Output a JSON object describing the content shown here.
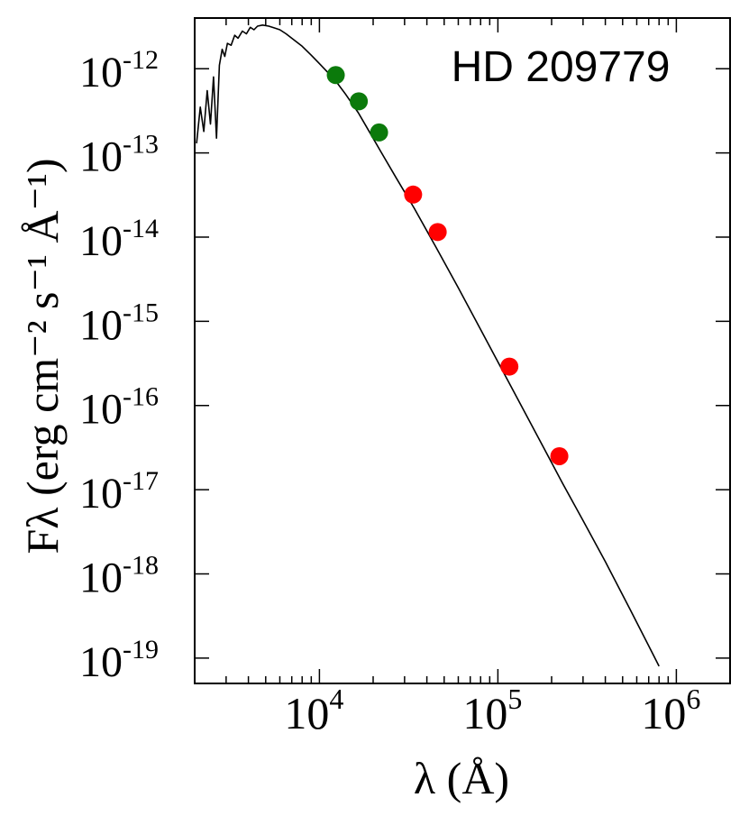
{
  "chart_data": {
    "type": "scatter",
    "title": "HD 209779",
    "xlabel": "λ (Å)",
    "ylabel": "Fλ (erg cm⁻² s⁻¹ Å⁻¹)",
    "x_scale": "log",
    "y_scale": "log",
    "xlim": [
      2000,
      2000000
    ],
    "ylim": [
      5e-20,
      4e-12
    ],
    "x_ticks": [
      {
        "value": 10000,
        "base": "10",
        "exp": "4"
      },
      {
        "value": 100000,
        "base": "10",
        "exp": "5"
      },
      {
        "value": 1000000,
        "base": "10",
        "exp": "6"
      }
    ],
    "y_ticks": [
      {
        "value": 1e-12,
        "base": "10",
        "exp": "-12"
      },
      {
        "value": 1e-13,
        "base": "10",
        "exp": "-13"
      },
      {
        "value": 1e-14,
        "base": "10",
        "exp": "-14"
      },
      {
        "value": 1e-15,
        "base": "10",
        "exp": "-15"
      },
      {
        "value": 1e-16,
        "base": "10",
        "exp": "-16"
      },
      {
        "value": 1e-17,
        "base": "10",
        "exp": "-17"
      },
      {
        "value": 1e-18,
        "base": "10",
        "exp": "-18"
      },
      {
        "value": 1e-19,
        "base": "10",
        "exp": "-19"
      }
    ],
    "model_curve": {
      "color": "#000000",
      "x": [
        2050,
        2150,
        2250,
        2350,
        2450,
        2550,
        2650,
        2750,
        2850,
        2950,
        3050,
        3200,
        3350,
        3500,
        3700,
        3900,
        4100,
        4300,
        4500,
        4800,
        5200,
        5600,
        6000,
        6500,
        7000,
        8000,
        9000,
        10000,
        11000,
        12300,
        14000,
        16500,
        19000,
        22000,
        27000,
        34000,
        45000,
        60000,
        80000,
        120000,
        180000,
        230000,
        300000,
        400000,
        550000,
        700000,
        800000
      ],
      "y": [
        1.3e-13,
        3.5e-13,
        1.8e-13,
        5.5e-13,
        2.2e-13,
        8e-13,
        1.5e-13,
        1.1e-12,
        1.7e-12,
        1.4e-12,
        2e-12,
        1.9e-12,
        2.5e-12,
        2.3e-12,
        2.8e-12,
        2.6e-12,
        3.1e-12,
        2.9e-12,
        3.2e-12,
        3.3e-12,
        3.2e-12,
        3.05e-12,
        2.9e-12,
        2.6e-12,
        2.3e-12,
        1.85e-12,
        1.45e-12,
        1.15e-12,
        9.3e-13,
        7.2e-13,
        5e-13,
        3e-13,
        1.8e-13,
        1.05e-13,
        5e-14,
        2.2e-14,
        7.6e-15,
        2.5e-15,
        8e-16,
        1.6e-16,
        3.2e-17,
        1.2e-17,
        4.3e-18,
        1.4e-18,
        3.8e-19,
        1.4e-19,
        8e-20
      ]
    },
    "series": [
      {
        "color": "#0b7a0b",
        "x": [
          12350,
          16620,
          21590
        ],
        "y": [
          8.4e-13,
          4.1e-13,
          1.75e-13
        ]
      },
      {
        "color": "#ff0000",
        "x": [
          33500,
          46000,
          116000,
          221000
        ],
        "y": [
          3.2e-14,
          1.15e-14,
          2.9e-16,
          2.5e-17
        ]
      }
    ]
  }
}
